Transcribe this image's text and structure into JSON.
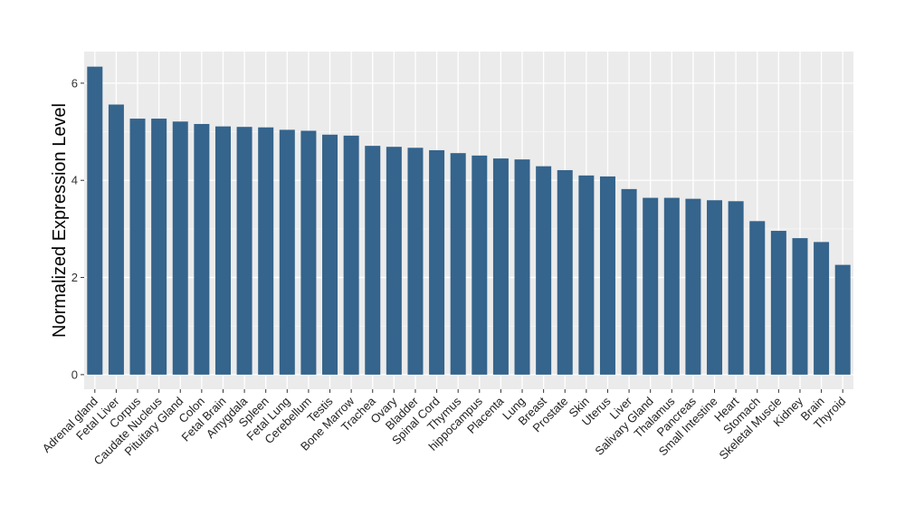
{
  "chart_data": {
    "type": "bar",
    "title": "",
    "xlabel": "",
    "ylabel": "Normalized Expression Level",
    "ylim": [
      -0.3,
      6.65
    ],
    "yticks": [
      0,
      2,
      4,
      6
    ],
    "grid": true,
    "legend": "none",
    "bar_color": "#35648c",
    "panel_color": "#ebebeb",
    "categories": [
      "Adrenal gland",
      "Fetal Liver",
      "Corpus",
      "Caudate Nucleus",
      "Pituitary Gland",
      "Colon",
      "Fetal Brain",
      "Amygdala",
      "Spleen",
      "Fetal Lung",
      "Cerebellum",
      "Testis",
      "Bone Marrow",
      "Trachea",
      "Ovary",
      "Bladder",
      "Spinal Cord",
      "Thymus",
      "hippocampus",
      "Placenta",
      "Lung",
      "Breast",
      "Prostate",
      "Skin",
      "Uterus",
      "Liver",
      "Salivary Gland",
      "Thalamus",
      "Pancreas",
      "Small Intestine",
      "Heart",
      "Stomach",
      "Skeletal Muscle",
      "Kidney",
      "Brain",
      "Thyroid"
    ],
    "values": [
      6.34,
      5.56,
      5.27,
      5.27,
      5.21,
      5.16,
      5.11,
      5.1,
      5.09,
      5.04,
      5.02,
      4.94,
      4.92,
      4.71,
      4.69,
      4.67,
      4.62,
      4.56,
      4.51,
      4.45,
      4.43,
      4.29,
      4.21,
      4.1,
      4.08,
      3.82,
      3.64,
      3.64,
      3.62,
      3.59,
      3.57,
      3.16,
      2.96,
      2.81,
      2.73,
      2.26
    ]
  }
}
